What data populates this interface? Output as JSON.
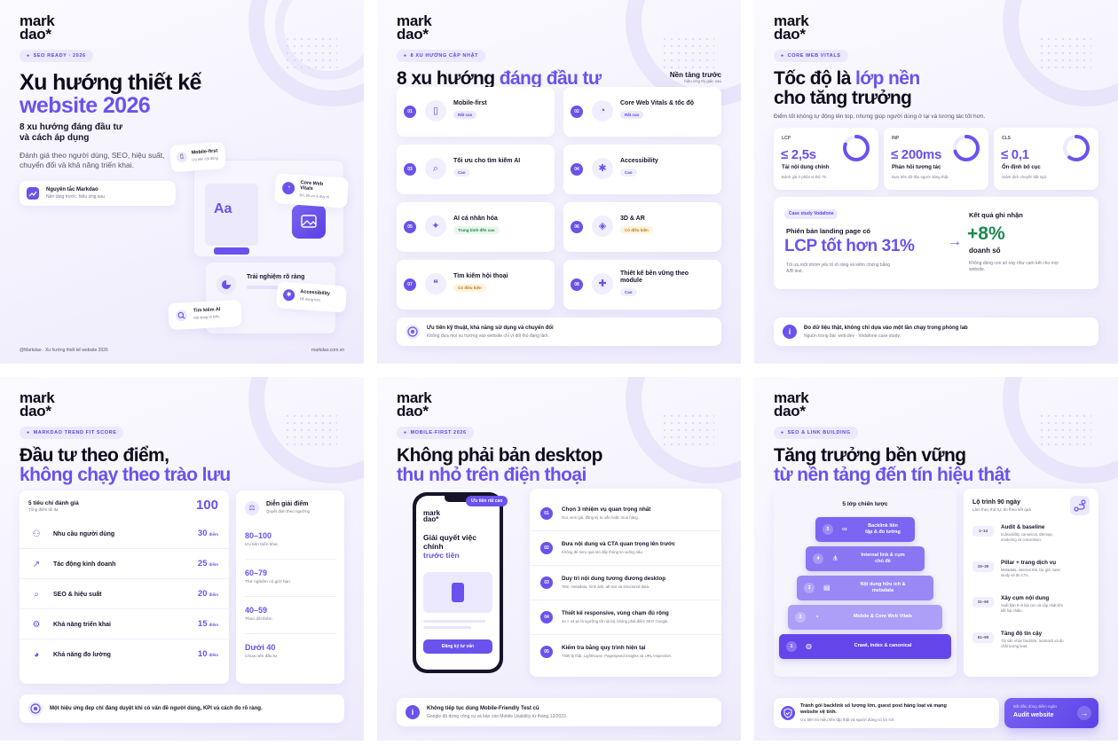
{
  "brand": {
    "logo_line1": "mark",
    "logo_line2": "dao*"
  },
  "panel1": {
    "tag": "SEO READY · 2026",
    "title_line1": "Xu hướng thiết kế",
    "title_line2": "website 2026",
    "subtitle_line1": "8 xu hướng đáng đầu tư",
    "subtitle_line2": "và cách áp dụng",
    "desc_line1": "Đánh giá theo người dùng, SEO, hiệu suất,",
    "desc_line2": "chuyển đổi và khả năng triển khai.",
    "principle_title": "Nguyên tắc Markdao",
    "principle_sub": "Nền tảng trước, hiệu ứng sau.",
    "mock_aa": "Aa",
    "chip_mobile_title": "Mobile-first",
    "chip_mobile_sub": "Ưu tiên cốt động",
    "chip_cwv_title_l1": "Core Web",
    "chip_cwv_title_l2": "Vitals",
    "chip_cwv_sub": "Đo, tối ưu & duy trì",
    "chip_ux": "Trải nghiệm rõ ràng",
    "chip_access_title": "Accessibility",
    "chip_access_sub": "Dễ dùng hơn",
    "chip_ai_title": "Tìm kiếm AI",
    "chip_ai_sub": "Nội dung rõ hiểu",
    "footer_left": "@Markdao · Xu hướng thiết kế website 2026",
    "footer_right": "markdao.com.vn"
  },
  "panel2": {
    "tag": "8 XU HƯỚNG CẬP NHẬT",
    "title_a": "8 xu hướng ",
    "title_b": "đáng đầu tư",
    "side_title": "Nền tảng trước",
    "side_sub": "hiệu ứng thị giác sau",
    "items": [
      {
        "n": "01",
        "title": "Mobile-first",
        "title2": "",
        "badge": "Rất cao",
        "kind": "rc",
        "icon": "phone-icon"
      },
      {
        "n": "02",
        "title": "Core Web Vitals & tốc độ",
        "title2": "",
        "badge": "Rất cao",
        "kind": "rc",
        "icon": "gauge-icon"
      },
      {
        "n": "03",
        "title": "Tối ưu cho tìm kiếm AI",
        "title2": "",
        "badge": "Cao",
        "kind": "c",
        "icon": "search-icon"
      },
      {
        "n": "04",
        "title": "Accessibility",
        "title2": "",
        "badge": "Cao",
        "kind": "c",
        "icon": "accessibility-icon"
      },
      {
        "n": "05",
        "title": "AI cá nhân hóa",
        "title2": "",
        "badge": "Trung bình đến cao",
        "kind": "tb",
        "icon": "magic-wand-icon"
      },
      {
        "n": "06",
        "title": "3D & AR",
        "title2": "",
        "badge": "Có điều kiện",
        "kind": "dk",
        "icon": "cube-icon"
      },
      {
        "n": "07",
        "title": "Tìm kiếm hội thoại",
        "title2": "",
        "badge": "Có điều kiện",
        "kind": "dk",
        "icon": "chat-icon"
      },
      {
        "n": "08",
        "title": "Thiết kế bền vững theo",
        "title2": "module",
        "badge": "Cao",
        "kind": "c",
        "icon": "puzzle-icon"
      }
    ],
    "bottom_title": "Ưu tiên kỹ thuật, khả năng sử dụng và chuyển đổi",
    "bottom_sub": "Không đưa mọi xu hướng vào website chỉ vì đối thủ đang làm."
  },
  "panel3": {
    "tag": "CORE WEB VITALS",
    "title_l1a": "Tốc độ là ",
    "title_l1b": "lớp nền",
    "title_l2": "cho tăng trưởng",
    "desc": "Điểm tốt không tự động lên top, nhưng giúp người dùng ở lại và tương tác tốt hơn.",
    "metrics": [
      {
        "key": "LCP",
        "value": "≤ 2,5s",
        "title": "Tải nội dung chính",
        "sub": "Đánh giá ở phân vị thứ 75",
        "ring": 0.8
      },
      {
        "key": "INP",
        "value": "≤ 200ms",
        "title": "Phản hồi tương tác",
        "sub": "Dựa trên dữ liệu người dùng thật.",
        "ring": 0.7
      },
      {
        "key": "CLS",
        "value": "≤ 0,1",
        "title": "Ổn định bố cục",
        "sub": "Giảm dịch chuyển bất ngờ.",
        "ring": 0.6
      }
    ],
    "case_tag": "Case study Vodafone",
    "case_title": "Phiên bản landing page có",
    "case_big": "LCP tốt hơn 31%",
    "case_sub_l1": "Tối ưu một nhóm yếu tố rõ ràng và kiểm chứng bằng",
    "case_sub_l2": "A/B test.",
    "result_title": "Kết quả ghi nhận",
    "result_big": "+8%",
    "result_label": "doanh số",
    "result_sub_l1": "Không dùng con số này như cam kết cho mọi",
    "result_sub_l2": "website.",
    "bottom_title": "Đo dữ liệu thật, không chỉ dựa vào một lần chạy trong phòng lab",
    "bottom_sub": "Nguồn trong bài: web.dev · Vodafone case study."
  },
  "panel4": {
    "tag": "MARKDAO TREND FIT SCORE",
    "title_l1": "Đầu tư theo điểm,",
    "title_l2": "không chạy theo trào lưu",
    "score_title": "5 tiêu chí đánh giá",
    "score_sub": "Tổng điểm tối đa",
    "score_total": "100",
    "unit": "điểm",
    "criteria": [
      {
        "label": "Nhu cầu người dùng",
        "pts": "30",
        "icon": "users-icon"
      },
      {
        "label": "Tác động kinh doanh",
        "pts": "25",
        "icon": "chart-line-icon"
      },
      {
        "label": "SEO & hiệu suất",
        "pts": "20",
        "icon": "search-icon"
      },
      {
        "label": "Khả năng triển khai",
        "pts": "15",
        "icon": "gear-icon"
      },
      {
        "label": "Khả năng đo lường",
        "pts": "10",
        "icon": "pie-icon"
      }
    ],
    "legend_title": "Diễn giải điểm",
    "legend_sub": "Quyết định theo ngưỡng",
    "ranges": [
      {
        "range": "80–100",
        "desc": "Ưu tiên triển khai"
      },
      {
        "range": "60–79",
        "desc": "Thử nghiệm có giới hạn"
      },
      {
        "range": "40–59",
        "desc": "Theo dõi thêm"
      },
      {
        "range": "Dưới 40",
        "desc": "Chưa nên đầu tư"
      }
    ],
    "bottom_title": "Một hiệu ứng đẹp chỉ đáng duyệt khi có vấn đề người dùng, KPI và cách đo rõ ràng."
  },
  "panel5": {
    "tag": "MOBILE-FIRST 2026",
    "title_l1": "Không phải bản desktop",
    "title_l2": "thu nhỏ trên điện thoại",
    "phone_badge": "Ưu tiên rất cao",
    "phone_logo1": "mark",
    "phone_logo2": "dao*",
    "phone_h_l1": "Giải quyết việc",
    "phone_h_l2": "chính",
    "phone_h_l3": "trước tiên",
    "phone_cta": "Đăng ký tư vấn",
    "steps": [
      {
        "n": "01",
        "title": "Chọn 3 nhiệm vụ quan trọng nhất",
        "sub": "Gọi, xem giá, đăng ký tư vấn hoặc mua hàng."
      },
      {
        "n": "02",
        "title": "Đưa nội dung và CTA quan trọng lên trước",
        "sub": "Không để hero quá lớn đẩy thông tin xuống sâu."
      },
      {
        "n": "03",
        "title": "Duy trì nội dung tương đương desktop",
        "sub": "Title, metadata, hình ảnh, alt text và structured data."
      },
      {
        "n": "04",
        "title": "Thiết kế responsive, vùng chạm đủ rộng",
        "sub": "44 × 44 px là ngưỡng tốt nội bộ, không phải điểm SEO Google."
      },
      {
        "n": "05",
        "title": "Kiểm tra bằng quy trình hiện tại",
        "sub": "Thiết bị thật, Lighthouse, PageSpeed Insights và URL Inspection."
      }
    ],
    "bottom_title": "Không tiếp tục dùng Mobile-Friendly Test cũ",
    "bottom_sub": "Google đã dừng công cụ và báo cáo Mobile Usability từ tháng 12/2023."
  },
  "panel6": {
    "tag": "SEO & LINK BUILDING",
    "title_l1": "Tăng trưởng bền vững",
    "title_l2": "từ nền tảng đến tín hiệu thật",
    "pyramid_title": "5 lớp chiến lược",
    "layers": [
      {
        "n": "5",
        "label_l1": "Backlink liên",
        "label_l2": "tập & đo lường",
        "icon": "link-icon"
      },
      {
        "n": "4",
        "label_l1": "Internal link & cụm",
        "label_l2": "chủ đề",
        "icon": "sitemap-icon"
      },
      {
        "n": "3",
        "label_l1": "Nội dung hữu ích &",
        "label_l2": "metadata",
        "icon": "document-icon"
      },
      {
        "n": "2",
        "label_l1": "Mobile & Core Web Vitals",
        "label_l2": "",
        "icon": "gauge-icon"
      },
      {
        "n": "1",
        "label_l1": "Crawl, index & canonical",
        "label_l2": "",
        "icon": "globe-icon"
      }
    ],
    "roadmap_title": "Lộ trình 90 ngày",
    "roadmap_sub": "Làm theo thứ tự, đo theo kết quả",
    "roadmap": [
      {
        "days": "1–14",
        "title": "Audit & baseline",
        "sub_l1": "Indexability, canonical, sitemap,",
        "sub_l2": "rendering và conversion."
      },
      {
        "days": "15–30",
        "title": "Pillar + trang dịch vụ",
        "sub_l1": "Metadata, internal link, tác giả, case",
        "sub_l2": "study và đo CTA."
      },
      {
        "days": "31–60",
        "title": "Xây cụm nội dung",
        "sub_l1": "Xuất bản 6–8 bài con và cập nhật liên",
        "sub_l2": "kết hai chiều."
      },
      {
        "days": "61–90",
        "title": "Tăng độ tin cậy",
        "sub_l1": "Tài sản nhận backlink, outreach và đo",
        "sub_l2": "chất lượng lead."
      }
    ],
    "bottom_title_l1": "Tránh gói backlink số lượng lớn, guest post hàng loạt và mạng",
    "bottom_title_l2": "website vệ tinh.",
    "bottom_sub": "Ưu tiên tín hiệu liên tập thật và người dùng có lợi ích.",
    "cta_small": "Bắt đầu đúng điểm ngân",
    "cta_big": "Audit website",
    "cta_arrow": "→"
  }
}
